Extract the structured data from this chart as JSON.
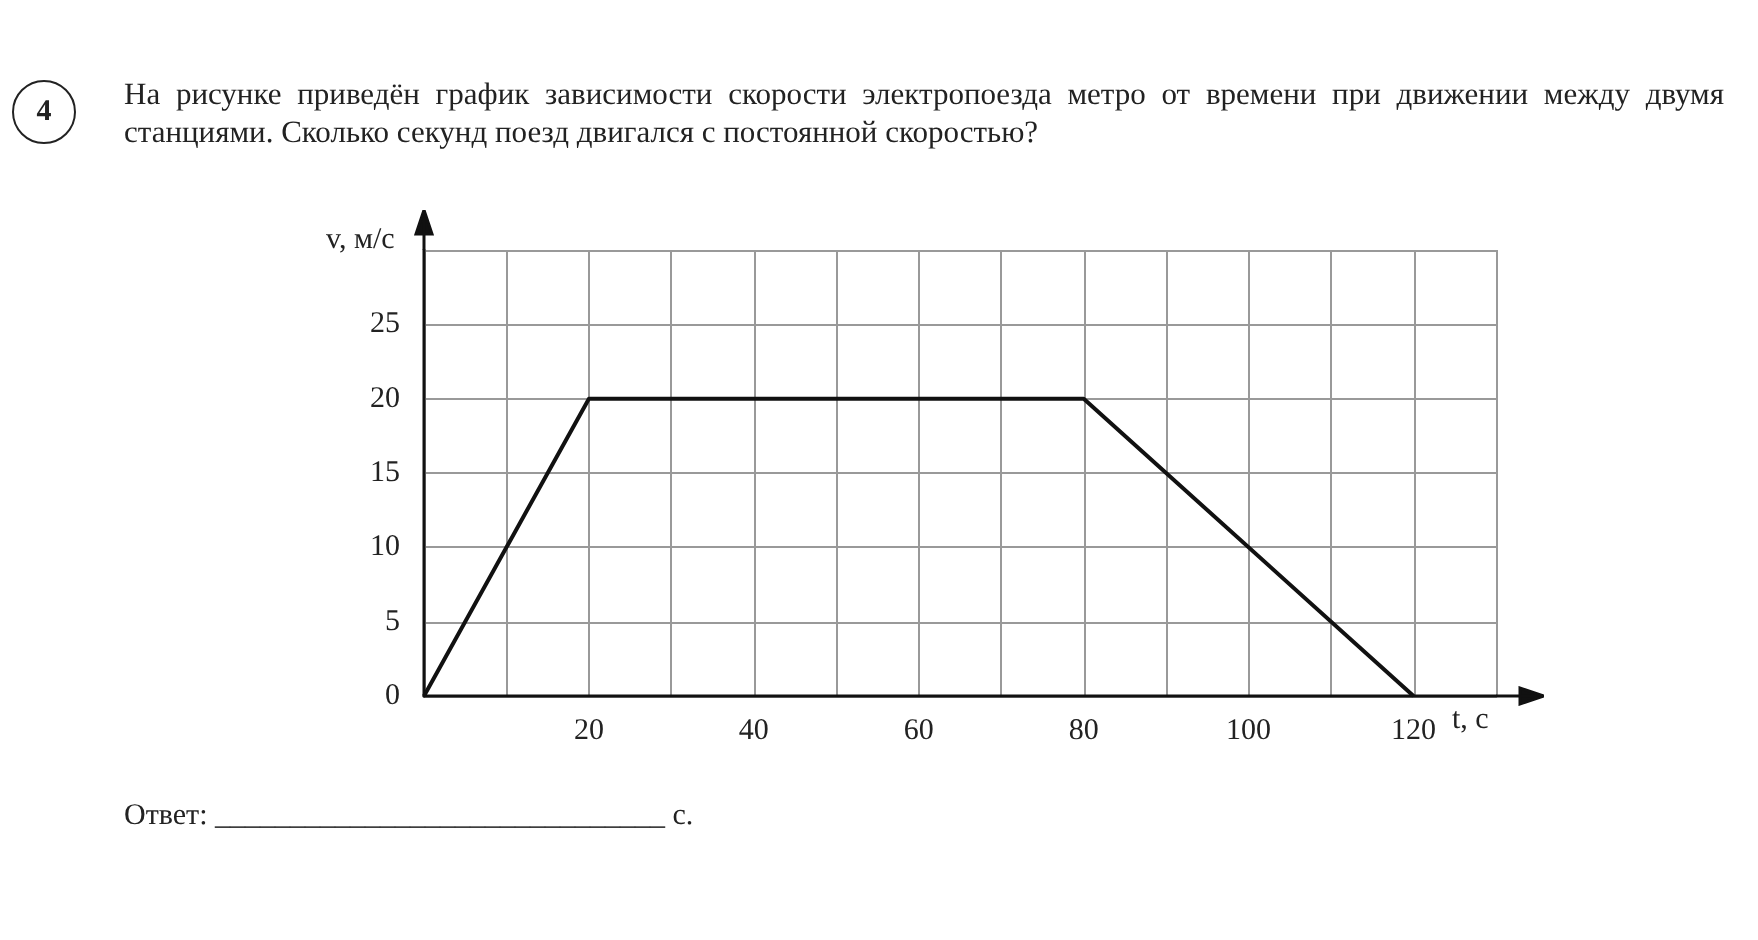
{
  "chart_data": {
    "type": "line",
    "title": "На рисунке приведён график зависимости скорости электропоезда метро от времени при движении между двумя станциями. Сколько секунд поезд двигался с постоянной скоростью?",
    "xlabel": "t, с",
    "ylabel": "v, м/с",
    "annotations": [
      "4",
      "Ответ: ______________________________ с."
    ],
    "x": [
      0,
      20,
      80,
      120
    ],
    "series": [
      {
        "color": "#111111",
        "values": [
          0,
          20,
          20,
          0
        ]
      }
    ],
    "xlim": [
      0,
      130
    ],
    "xticks": [
      {
        "value": 0,
        "label": null
      },
      {
        "value": 10,
        "label": null
      },
      20,
      {
        "value": 30,
        "label": null
      },
      40,
      {
        "value": 50,
        "label": null
      },
      60,
      {
        "value": 70,
        "label": null
      },
      80,
      {
        "value": 90,
        "label": null
      },
      100,
      {
        "value": 110,
        "label": null
      },
      120,
      {
        "value": 130,
        "label": null
      }
    ],
    "ylim": [
      0,
      30
    ],
    "yticks": [
      0,
      5,
      10,
      15,
      20,
      25,
      {
        "value": 30,
        "label": null
      }
    ],
    "grid": true,
    "marker": "none",
    "line_style": "solid"
  }
}
